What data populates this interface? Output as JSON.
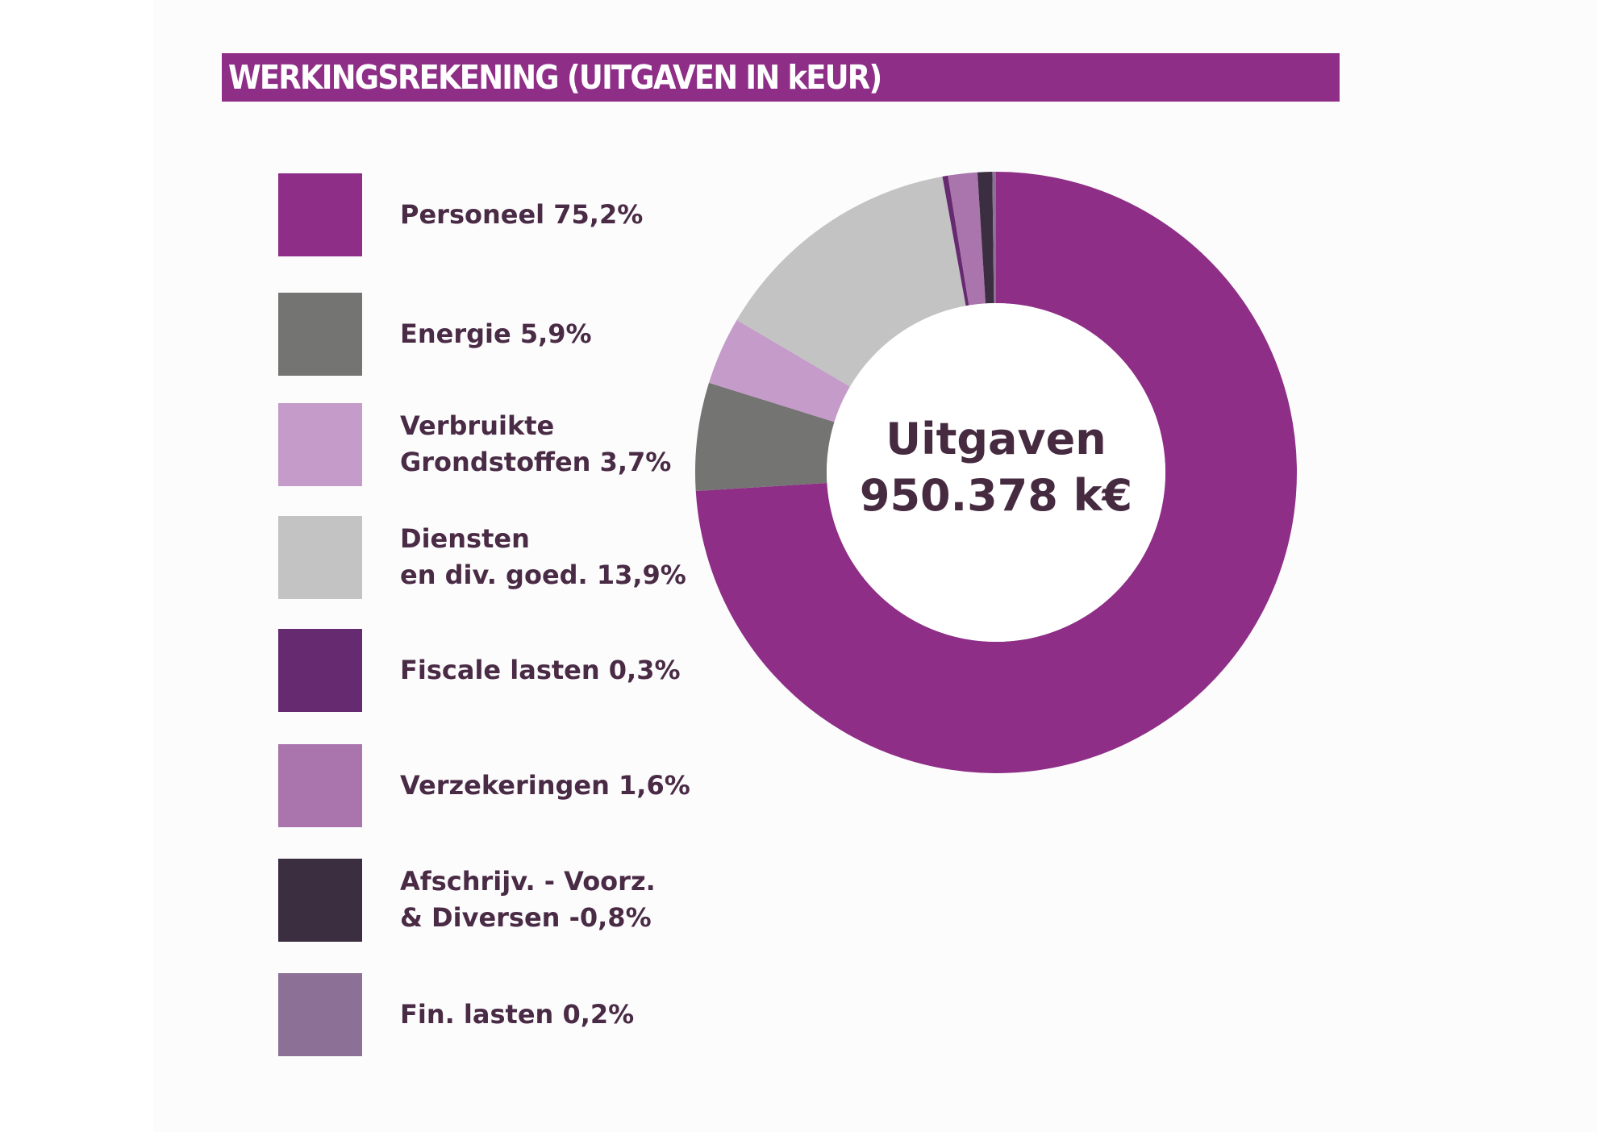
{
  "title": "WERKINGSREKENING (UITGAVEN IN kEUR)",
  "colors": {
    "title_bar": "#8e2e87",
    "text": "#4a2b45"
  },
  "legend": [
    {
      "lines": [
        "Personeel 75,2%"
      ],
      "color": "#8e2e87"
    },
    {
      "lines": [
        "Energie 5,9%"
      ],
      "color": "#747473"
    },
    {
      "lines": [
        "Verbruikte",
        "Grondstoffen  3,7%"
      ],
      "color": "#c49bc9"
    },
    {
      "lines": [
        "Diensten",
        "en div. goed. 13,9%"
      ],
      "color": "#c3c3c3"
    },
    {
      "lines": [
        "Fiscale lasten 0,3%"
      ],
      "color": "#652a6f"
    },
    {
      "lines": [
        "Verzekeringen 1,6%"
      ],
      "color": "#aa75ad"
    },
    {
      "lines": [
        "Afschrijv. - Voorz.",
        "& Diversen -0,8%"
      ],
      "color": "#3a2e40"
    },
    {
      "lines": [
        "Fin. lasten 0,2%"
      ],
      "color": "#8d7095"
    }
  ],
  "chart_data": {
    "type": "pie",
    "title": "WERKINGSREKENING (UITGAVEN IN kEUR)",
    "center_label": [
      "Uitgaven",
      "950.378 k€"
    ],
    "slices": [
      {
        "name": "Personeel",
        "value": 75.2,
        "color": "#8e2e87"
      },
      {
        "name": "Energie",
        "value": 5.9,
        "color": "#747473"
      },
      {
        "name": "Verbruikte Grondstoffen",
        "value": 3.7,
        "color": "#c49bc9"
      },
      {
        "name": "Diensten en div. goed.",
        "value": 13.9,
        "color": "#c3c3c3"
      },
      {
        "name": "Fiscale lasten",
        "value": 0.3,
        "color": "#652a6f"
      },
      {
        "name": "Verzekeringen",
        "value": 1.6,
        "color": "#aa75ad"
      },
      {
        "name": "Afschrijv. - Voorz. & Diversen",
        "value": -0.8,
        "color": "#3a2e40"
      },
      {
        "name": "Fin. lasten",
        "value": 0.2,
        "color": "#8d7095"
      }
    ]
  }
}
